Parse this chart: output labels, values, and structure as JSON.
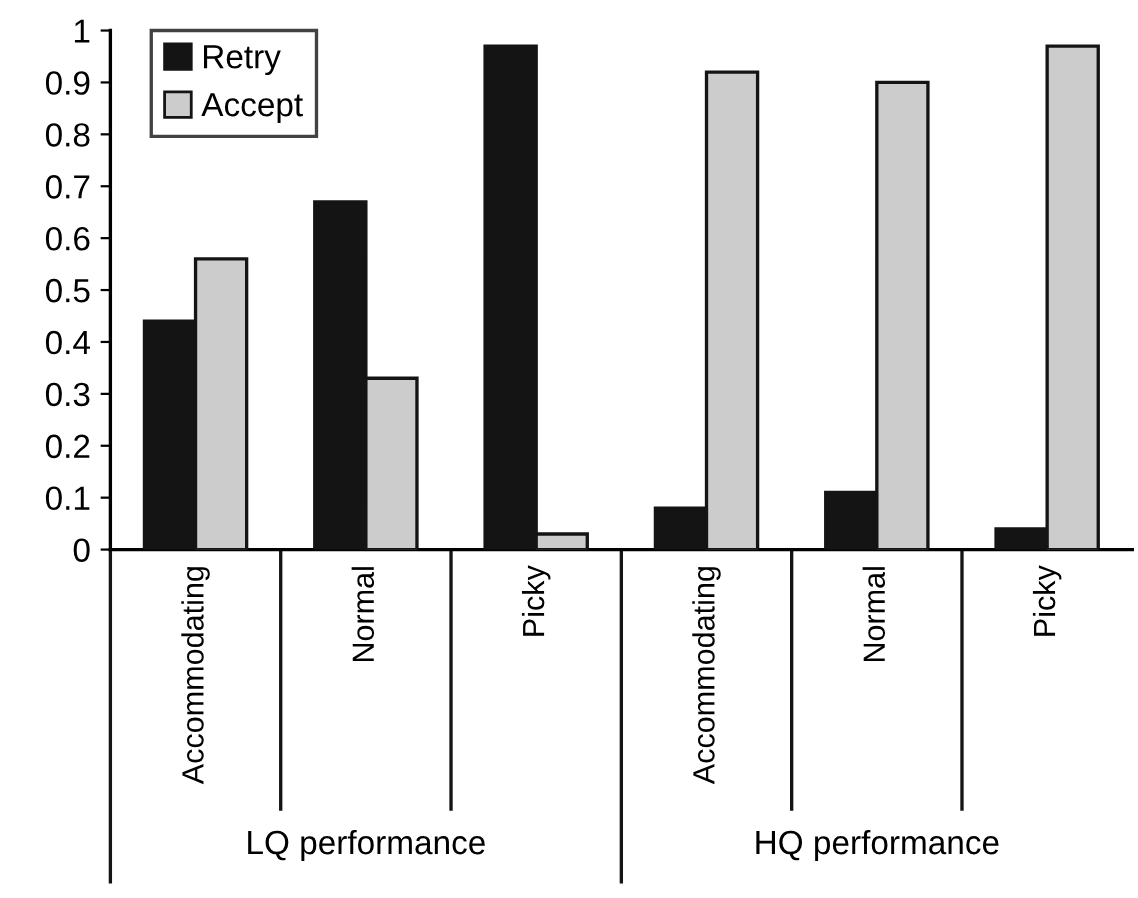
{
  "chart_data": {
    "type": "bar",
    "categories": [
      "Accommodating",
      "Normal",
      "Picky",
      "Accommodating",
      "Normal",
      "Picky"
    ],
    "series": [
      {
        "name": "Retry",
        "color": "#141414",
        "values": [
          0.44,
          0.67,
          0.97,
          0.08,
          0.11,
          0.04
        ]
      },
      {
        "name": "Accept",
        "color": "#cccccc",
        "values": [
          0.56,
          0.33,
          0.03,
          0.92,
          0.9,
          0.97
        ]
      }
    ],
    "ylim": [
      0,
      1
    ],
    "yticks": [
      0,
      0.1,
      0.2,
      0.3,
      0.4,
      0.5,
      0.6,
      0.7,
      0.8,
      0.9,
      1
    ],
    "annotations": [
      "LQ performance",
      "HQ performance"
    ],
    "grid": false,
    "legend": "top left"
  }
}
